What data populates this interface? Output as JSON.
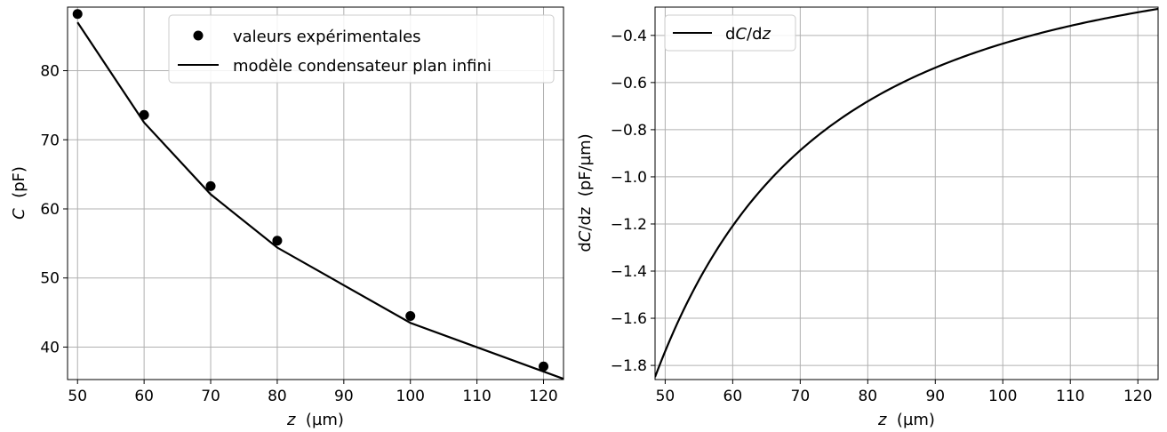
{
  "chart_data": [
    {
      "type": "scatter",
      "xlabel_var": "z",
      "xlabel_unit": "  (µm)",
      "ylabel_var": "C",
      "ylabel_unit": "  (pF)",
      "xlim": [
        48.5,
        123.0
      ],
      "ylim": [
        35.3,
        89.2
      ],
      "xticks": [
        50,
        60,
        70,
        80,
        90,
        100,
        110,
        120
      ],
      "yticks": [
        40,
        50,
        60,
        70,
        80
      ],
      "grid": true,
      "legend_position": "top-right",
      "series": [
        {
          "name": "valeurs expérimentales",
          "style": "markers",
          "color": "#000000",
          "x": [
            50,
            60,
            70,
            80,
            100,
            120
          ],
          "y": [
            88.2,
            73.6,
            63.3,
            55.4,
            44.5,
            37.2
          ]
        },
        {
          "name": "modèle condensateur plan infini",
          "style": "line",
          "color": "#000000",
          "x": [
            50,
            60,
            70,
            80,
            100,
            123
          ],
          "y": [
            87.0,
            72.5,
            62.1,
            54.4,
            43.5,
            35.4
          ]
        }
      ]
    },
    {
      "type": "line",
      "xlabel_var": "z",
      "xlabel_unit": "  (µm)",
      "ylabel_pre": "d",
      "ylabel_var": "C",
      "ylabel_unit": "/dz  (pF/µm)",
      "xlim": [
        48.5,
        123.0
      ],
      "ylim": [
        -1.86,
        -0.28
      ],
      "xticks": [
        50,
        60,
        70,
        80,
        90,
        100,
        110,
        120
      ],
      "yticks": [
        -1.8,
        -1.6,
        -1.4,
        -1.2,
        -1.0,
        -0.8,
        -0.6,
        -0.4
      ],
      "ytick_labels": [
        "−1.8",
        "−1.6",
        "−1.4",
        "−1.2",
        "−1.0",
        "−0.8",
        "−0.6",
        "−0.4"
      ],
      "grid": true,
      "legend_position": "top-left",
      "legend_label_pre": "d",
      "legend_label_var": "C",
      "legend_label_mid": "/d",
      "legend_label_var2": "z",
      "series": [
        {
          "color": "#000000",
          "coefficient": -4350,
          "exponent": -2,
          "x_start": 48.5,
          "x_end": 123.0
        }
      ]
    }
  ]
}
